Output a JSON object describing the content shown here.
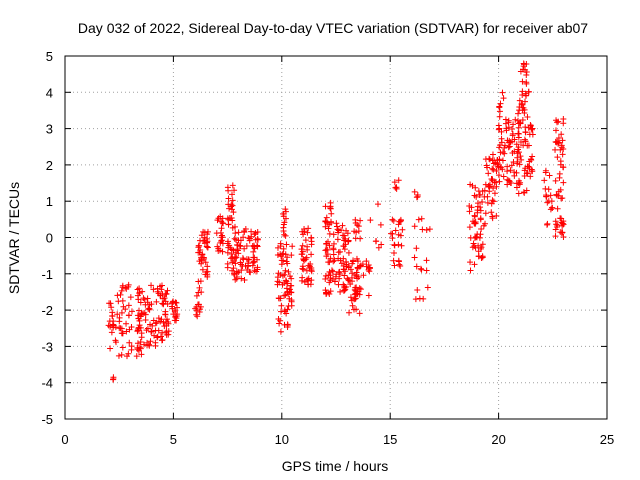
{
  "chart_data": {
    "type": "scatter",
    "title": "Day 032 of 2022, Sidereal Day-to-day VTEC variation (SDTVAR) for receiver ab07",
    "xlabel": "GPS time / hours",
    "ylabel": "SDTVAR / TECUs",
    "xlim": [
      0,
      25
    ],
    "ylim": [
      -5,
      5
    ],
    "x_ticks": [
      "0",
      "5",
      "10",
      "15",
      "20",
      "25"
    ],
    "y_ticks": [
      "-5",
      "-4",
      "-3",
      "-2",
      "-1",
      "0",
      "1",
      "2",
      "3",
      "4",
      "5"
    ],
    "grid": true,
    "marker": "plus",
    "series": [
      {
        "name": "ab07",
        "color": "#ff0000",
        "clusters": [
          {
            "x": [
              2.0,
              2.4
            ],
            "y": [
              -3.2,
              -1.8
            ],
            "n": 18
          },
          {
            "x": [
              2.15,
              2.25
            ],
            "y": [
              -4.0,
              -3.8
            ],
            "n": 3
          },
          {
            "x": [
              2.4,
              3.1
            ],
            "y": [
              -3.3,
              -1.3
            ],
            "n": 40
          },
          {
            "x": [
              3.3,
              3.6
            ],
            "y": [
              -3.3,
              -1.4
            ],
            "n": 35
          },
          {
            "x": [
              3.6,
              4.5
            ],
            "y": [
              -3.0,
              -1.3
            ],
            "n": 55
          },
          {
            "x": [
              4.5,
              4.8
            ],
            "y": [
              -2.7,
              -1.4
            ],
            "n": 25
          },
          {
            "x": [
              4.9,
              5.2
            ],
            "y": [
              -2.3,
              -1.7
            ],
            "n": 18
          },
          {
            "x": [
              6.0,
              6.3
            ],
            "y": [
              -2.3,
              -1.2
            ],
            "n": 16
          },
          {
            "x": [
              6.1,
              6.6
            ],
            "y": [
              -1.1,
              0.2
            ],
            "n": 40
          },
          {
            "x": [
              7.0,
              7.3
            ],
            "y": [
              -0.4,
              0.7
            ],
            "n": 22
          },
          {
            "x": [
              7.5,
              7.9
            ],
            "y": [
              -1.0,
              1.6
            ],
            "n": 45
          },
          {
            "x": [
              7.8,
              8.5
            ],
            "y": [
              -1.2,
              0.3
            ],
            "n": 45
          },
          {
            "x": [
              8.5,
              8.9
            ],
            "y": [
              -1.0,
              0.2
            ],
            "n": 30
          },
          {
            "x": [
              9.8,
              10.5
            ],
            "y": [
              -2.6,
              -0.1
            ],
            "n": 70
          },
          {
            "x": [
              10.0,
              10.2
            ],
            "y": [
              0.0,
              0.9
            ],
            "n": 12
          },
          {
            "x": [
              10.9,
              11.4
            ],
            "y": [
              -1.3,
              0.3
            ],
            "n": 45
          },
          {
            "x": [
              12.0,
              12.3
            ],
            "y": [
              -1.6,
              1.0
            ],
            "n": 45
          },
          {
            "x": [
              12.3,
              13.1
            ],
            "y": [
              -1.5,
              0.4
            ],
            "n": 70
          },
          {
            "x": [
              13.1,
              13.6
            ],
            "y": [
              -2.1,
              -0.5
            ],
            "n": 35
          },
          {
            "x": [
              13.3,
              14.1
            ],
            "y": [
              -1.7,
              0.8
            ],
            "n": 30
          },
          {
            "x": [
              14.3,
              14.6
            ],
            "y": [
              -0.3,
              1.1
            ],
            "n": 6
          },
          {
            "x": [
              15.0,
              15.6
            ],
            "y": [
              -0.8,
              0.5
            ],
            "n": 25
          },
          {
            "x": [
              15.2,
              15.4
            ],
            "y": [
              1.3,
              1.6
            ],
            "n": 5
          },
          {
            "x": [
              16.1,
              16.3
            ],
            "y": [
              1.1,
              1.3
            ],
            "n": 4
          },
          {
            "x": [
              16.1,
              16.9
            ],
            "y": [
              -1.7,
              0.6
            ],
            "n": 18
          },
          {
            "x": [
              18.6,
              18.9
            ],
            "y": [
              -1.0,
              1.6
            ],
            "n": 18
          },
          {
            "x": [
              18.9,
              19.4
            ],
            "y": [
              -0.6,
              1.4
            ],
            "n": 40
          },
          {
            "x": [
              19.4,
              20.0
            ],
            "y": [
              0.5,
              2.4
            ],
            "n": 45
          },
          {
            "x": [
              20.0,
              20.4
            ],
            "y": [
              1.2,
              4.0
            ],
            "n": 35
          },
          {
            "x": [
              20.4,
              21.0
            ],
            "y": [
              1.3,
              3.5
            ],
            "n": 45
          },
          {
            "x": [
              20.9,
              21.4
            ],
            "y": [
              1.2,
              4.8
            ],
            "n": 50
          },
          {
            "x": [
              21.2,
              21.6
            ],
            "y": [
              1.6,
              3.1
            ],
            "n": 30
          },
          {
            "x": [
              22.1,
              22.5
            ],
            "y": [
              0.3,
              1.9
            ],
            "n": 18
          },
          {
            "x": [
              22.6,
              23.0
            ],
            "y": [
              0.0,
              3.3
            ],
            "n": 55
          }
        ]
      }
    ]
  }
}
